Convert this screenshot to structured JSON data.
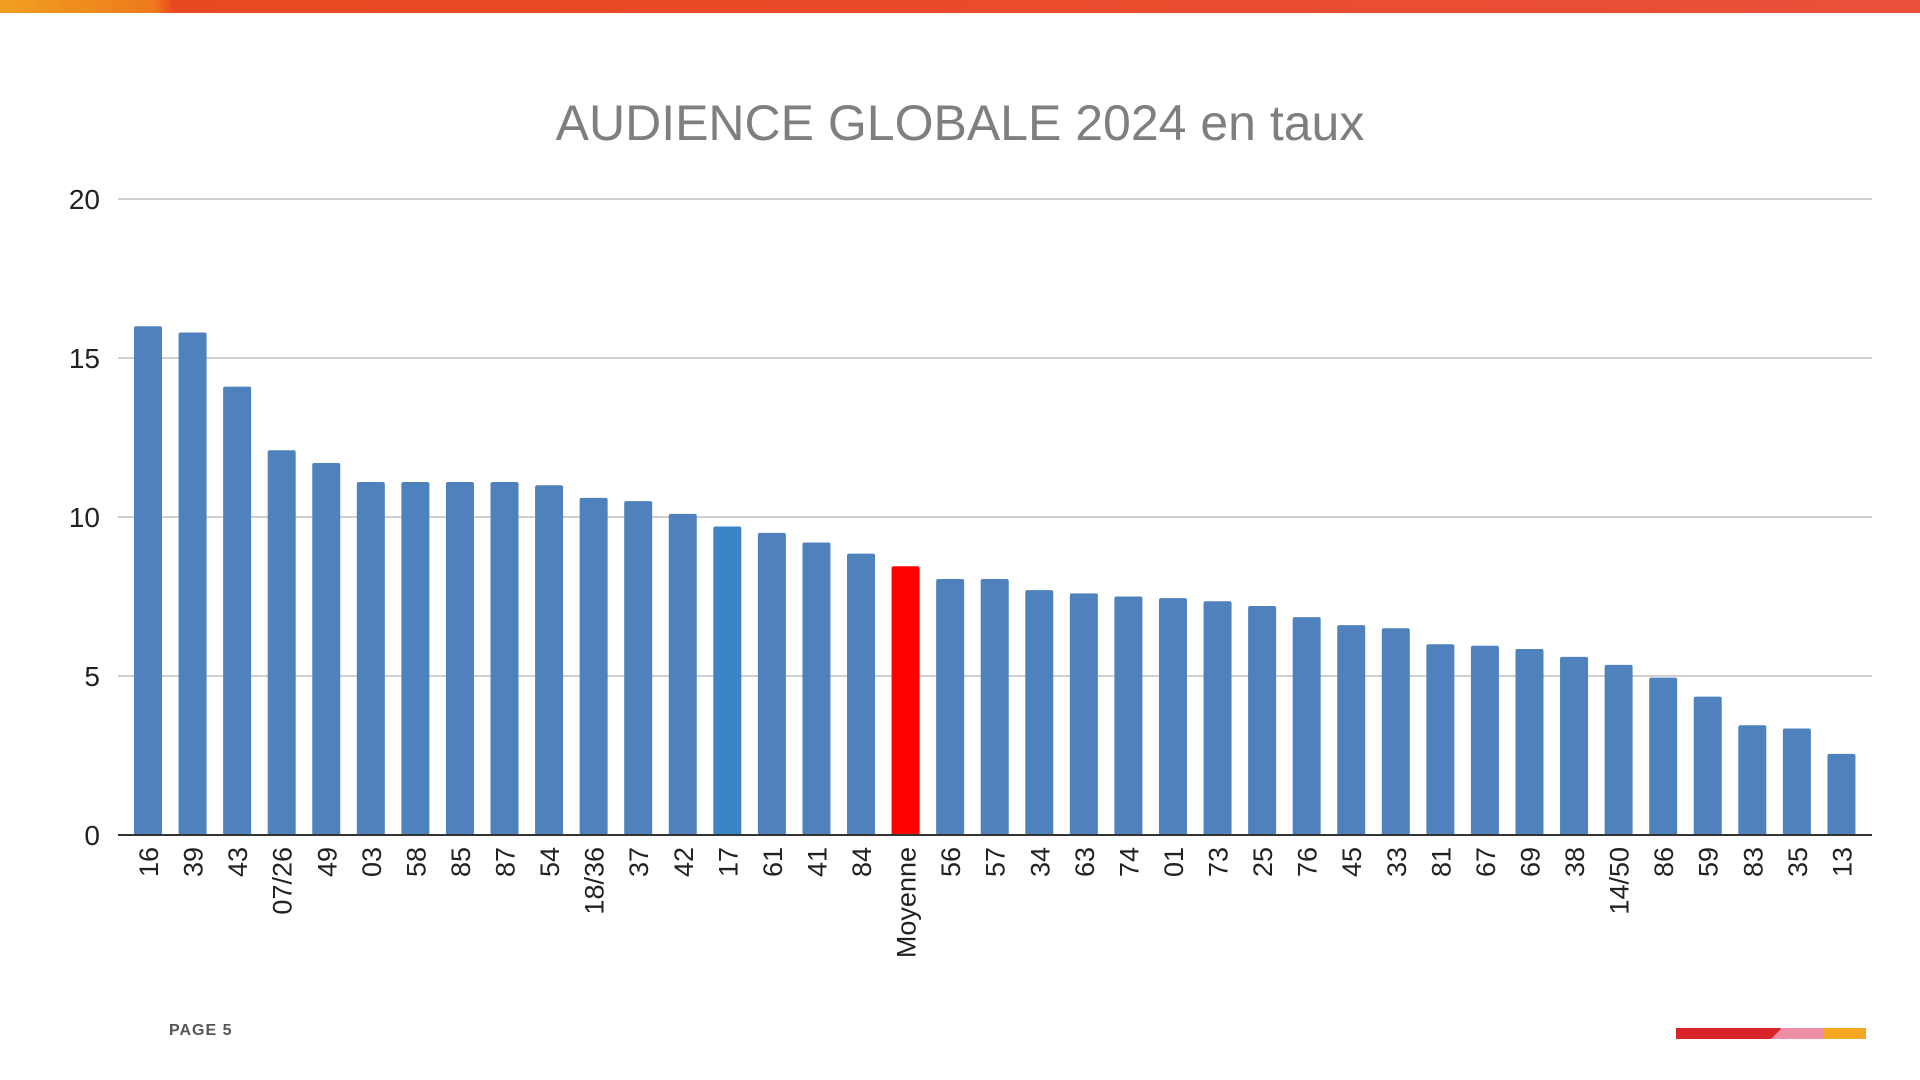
{
  "footer": {
    "page_label": "PAGE 5"
  },
  "colors": {
    "bar": "#4f81bd",
    "highlight_blue": "#3b84c6",
    "highlight_red": "#ff0000",
    "grid": "#d0d0d0",
    "title": "#7f7f7f"
  },
  "chart_data": {
    "type": "bar",
    "title": "AUDIENCE GLOBALE 2024 en taux",
    "xlabel": "",
    "ylabel": "",
    "ylim": [
      0,
      20
    ],
    "yticks": [
      "0",
      "5",
      "10",
      "15",
      "20"
    ],
    "grid": true,
    "legend": "none",
    "categories": [
      "16",
      "39",
      "43",
      "07/26",
      "49",
      "03",
      "58",
      "85",
      "87",
      "54",
      "18/36",
      "37",
      "42",
      "17",
      "61",
      "41",
      "84",
      "Moyenne",
      "56",
      "57",
      "34",
      "63",
      "74",
      "01",
      "73",
      "25",
      "76",
      "45",
      "33",
      "81",
      "67",
      "69",
      "38",
      "14/50",
      "86",
      "59",
      "83",
      "35",
      "13"
    ],
    "values": [
      16.0,
      15.8,
      14.1,
      12.1,
      11.7,
      11.1,
      11.1,
      11.1,
      11.1,
      11.0,
      10.6,
      10.5,
      10.1,
      9.7,
      9.5,
      9.2,
      8.85,
      8.45,
      8.05,
      8.05,
      7.7,
      7.6,
      7.5,
      7.45,
      7.35,
      7.2,
      6.85,
      6.6,
      6.5,
      6.0,
      5.95,
      5.85,
      5.6,
      5.35,
      4.95,
      4.35,
      3.45,
      3.35,
      2.55
    ],
    "highlight": {
      "Moyenne": "#ff0000",
      "17": "#3b84c6"
    }
  }
}
